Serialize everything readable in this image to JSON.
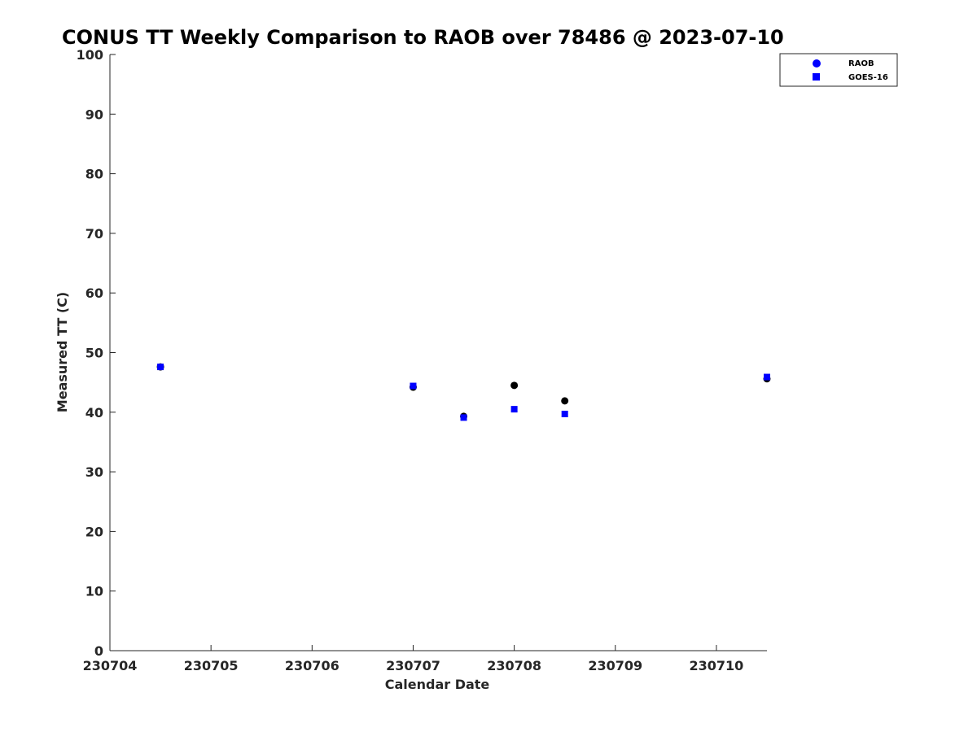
{
  "chart_data": {
    "type": "scatter",
    "title": "CONUS TT Weekly Comparison to RAOB over 78486 @ 2023-07-10",
    "xlabel": "Calendar Date",
    "ylabel": "Measured TT (C)",
    "x_ticks": [
      "230704",
      "230705",
      "230706",
      "230707",
      "230708",
      "230709",
      "230710"
    ],
    "y_ticks": [
      "0",
      "10",
      "20",
      "30",
      "40",
      "50",
      "60",
      "70",
      "80",
      "90",
      "100"
    ],
    "ylim": [
      0,
      100
    ],
    "xlim": [
      "230704",
      "230710.5"
    ],
    "grid": false,
    "legend_position": "top-right",
    "series": [
      {
        "name": "RAOB",
        "marker": "circle",
        "color": "#000000",
        "points": [
          {
            "x": "230704.5",
            "y": 47.6
          },
          {
            "x": "230707.0",
            "y": 44.2
          },
          {
            "x": "230707.5",
            "y": 39.3
          },
          {
            "x": "230708.0",
            "y": 44.5
          },
          {
            "x": "230708.5",
            "y": 41.9
          },
          {
            "x": "230710.5",
            "y": 45.6
          }
        ]
      },
      {
        "name": "GOES-16",
        "marker": "square",
        "color": "#0000ff",
        "points": [
          {
            "x": "230704.5",
            "y": 47.6
          },
          {
            "x": "230707.0",
            "y": 44.4
          },
          {
            "x": "230707.5",
            "y": 39.1
          },
          {
            "x": "230708.0",
            "y": 40.5
          },
          {
            "x": "230708.5",
            "y": 39.7
          },
          {
            "x": "230710.5",
            "y": 45.9
          }
        ]
      }
    ],
    "legend_marker_color": "#0000ff"
  }
}
